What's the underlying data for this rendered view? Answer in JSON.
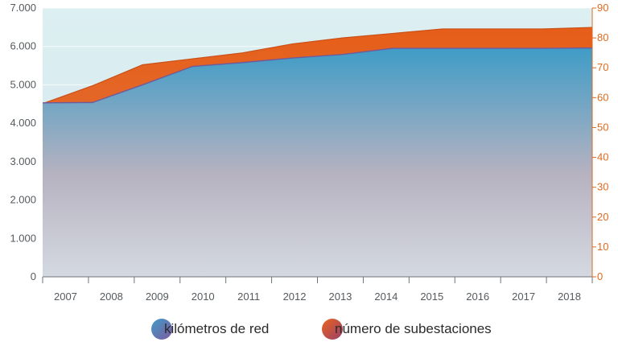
{
  "chart_data": {
    "type": "area",
    "x": [
      "2007",
      "2008",
      "2009",
      "2010",
      "2011",
      "2012",
      "2013",
      "2014",
      "2015",
      "2016",
      "2017",
      "2018"
    ],
    "series": [
      {
        "name": "kilómetros de red",
        "axis": "left",
        "values": [
          4530,
          4540,
          5000,
          5480,
          5580,
          5700,
          5790,
          5950,
          5950,
          5950,
          5950,
          5960
        ]
      },
      {
        "name": "número de subestaciones",
        "axis": "right",
        "values": [
          58,
          64,
          71,
          73,
          75,
          78,
          80,
          81.5,
          83,
          83,
          83,
          83.5
        ]
      }
    ],
    "left_axis": {
      "ylim": [
        0,
        7000
      ],
      "ticks": [
        "0",
        "1.000",
        "2.000",
        "3.000",
        "4.000",
        "5.000",
        "6.000",
        "7.000"
      ]
    },
    "right_axis": {
      "ylim": [
        0,
        90
      ],
      "ticks": [
        "0",
        "10",
        "20",
        "30",
        "40",
        "50",
        "60",
        "70",
        "80",
        "90"
      ]
    },
    "grid": true,
    "legend_position": "bottom",
    "colors": {
      "km_top": "#3f9cc7",
      "km_bottom": "#c9c2cc",
      "subestaciones": "#e8641e",
      "subestaciones_fill": "#e46f33",
      "background_top": "#dbeef1",
      "background_bottom": "#d6e8ee",
      "left_tick": "#555a5e",
      "right_tick": "#e06a1e"
    }
  },
  "legend": {
    "km_label": "kilómetros de red",
    "subestaciones_label": "número de subestaciones"
  }
}
